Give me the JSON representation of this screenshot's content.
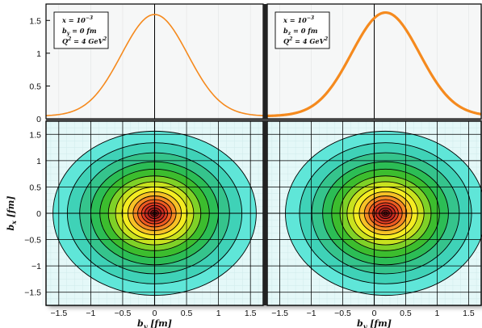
{
  "chart_data": [
    {
      "panel": "top-left",
      "type": "line",
      "legend": [
        "x = 10",
        "-3",
        "b",
        "y",
        " = 0 fm",
        "Q",
        "2",
        " = 4 GeV",
        "2"
      ],
      "legend_lines": [
        {
          "base": "x = 10",
          "sup": "−3"
        },
        {
          "base": "b",
          "sub": "y",
          "rest": " = 0 fm"
        },
        {
          "base": "Q",
          "sup": "2",
          "rest": " = 4 GeV",
          "sup2": "2"
        }
      ],
      "xlim": [
        -1.7,
        1.7
      ],
      "ylim": [
        0,
        1.75
      ],
      "y_ticks": [
        "0",
        "0.5",
        "1",
        "1.5"
      ],
      "curve": {
        "peak_x": 0.0,
        "peak_y": 1.59,
        "sigma": 0.52,
        "color": "#f58a1e"
      },
      "points": [
        [
          -1.7,
          0.07
        ],
        [
          -1.5,
          0.1
        ],
        [
          -1.25,
          0.22
        ],
        [
          -1.0,
          0.45
        ],
        [
          -0.75,
          0.8
        ],
        [
          -0.5,
          1.15
        ],
        [
          -0.25,
          1.46
        ],
        [
          0.0,
          1.59
        ],
        [
          0.25,
          1.46
        ],
        [
          0.5,
          1.15
        ],
        [
          0.75,
          0.8
        ],
        [
          1.0,
          0.45
        ],
        [
          1.25,
          0.22
        ],
        [
          1.5,
          0.1
        ],
        [
          1.7,
          0.07
        ]
      ]
    },
    {
      "panel": "top-right",
      "type": "line",
      "legend_lines": [
        {
          "base": "x = 10",
          "sup": "−3"
        },
        {
          "base": "b",
          "sub": "z",
          "rest": " = 0 fm"
        },
        {
          "base": "Q",
          "sup": "2",
          "rest": " = 4 GeV",
          "sup2": "2"
        }
      ],
      "xlim": [
        -1.7,
        1.7
      ],
      "ylim": [
        0,
        1.75
      ],
      "curve": {
        "peak_x": 0.18,
        "peak_y": 1.62,
        "sigma": 0.54,
        "color": "#f58a1e"
      },
      "points": [
        [
          -1.7,
          0.06
        ],
        [
          -1.5,
          0.08
        ],
        [
          -1.25,
          0.16
        ],
        [
          -1.0,
          0.35
        ],
        [
          -0.75,
          0.66
        ],
        [
          -0.5,
          1.0
        ],
        [
          -0.25,
          1.34
        ],
        [
          0.0,
          1.55
        ],
        [
          0.18,
          1.62
        ],
        [
          0.5,
          1.42
        ],
        [
          0.75,
          1.05
        ],
        [
          1.0,
          0.68
        ],
        [
          1.25,
          0.38
        ],
        [
          1.5,
          0.19
        ],
        [
          1.7,
          0.1
        ]
      ]
    },
    {
      "panel": "bottom-left",
      "type": "heatmap",
      "subtype": "contour",
      "center": [
        0.0,
        0.0
      ],
      "xlim": [
        -1.7,
        1.7
      ],
      "ylim": [
        -1.75,
        1.75
      ],
      "x_ticks": [
        "−1.5",
        "−1",
        "−0.5",
        "0",
        "0.5",
        "1",
        "1.5"
      ],
      "y_ticks": [
        "−1.5",
        "−1",
        "−0.5",
        "0",
        "0.5",
        "1",
        "1.5"
      ],
      "xlabel": "b_y [fm]",
      "ylabel": "b_x [fm]",
      "contour_radii": [
        1.56,
        1.34,
        1.15,
        0.98,
        0.84,
        0.71,
        0.6,
        0.5,
        0.41,
        0.33,
        0.26,
        0.2,
        0.15,
        0.1,
        0.06,
        0.03
      ]
    },
    {
      "panel": "bottom-right",
      "type": "heatmap",
      "subtype": "contour",
      "center": [
        0.18,
        0.0
      ],
      "xlim": [
        -1.7,
        1.7
      ],
      "ylim": [
        -1.75,
        1.75
      ],
      "x_ticks": [
        "−1.5",
        "−1",
        "−0.5",
        "0",
        "0.5",
        "1",
        "1.5"
      ],
      "xlabel": "b_y [fm]",
      "contour_radii": [
        1.56,
        1.34,
        1.15,
        0.98,
        0.84,
        0.71,
        0.6,
        0.5,
        0.41,
        0.33,
        0.26,
        0.2,
        0.15,
        0.1,
        0.06,
        0.03
      ]
    }
  ],
  "labels": {
    "y_axis_left": "b",
    "y_axis_left_sub": "x",
    "y_axis_left_unit": " [fm]",
    "x_axis": "b",
    "x_axis_sub": "y",
    "x_axis_unit": " [fm]"
  },
  "colors": {
    "curve": "#f58a1e",
    "contour_levels": [
      "#5fe6d8",
      "#3fd2b7",
      "#35c48c",
      "#2cbd55",
      "#3cbd2e",
      "#7fd127",
      "#c9e21f",
      "#f4ec22",
      "#f7c126",
      "#f48a24",
      "#ee5b22",
      "#dd3b22",
      "#c52b20",
      "#a81f1c",
      "#8a1616",
      "#6e1010"
    ],
    "panel_bg": "#f6f7f7",
    "cyan_bg": "#e4f8f8"
  }
}
